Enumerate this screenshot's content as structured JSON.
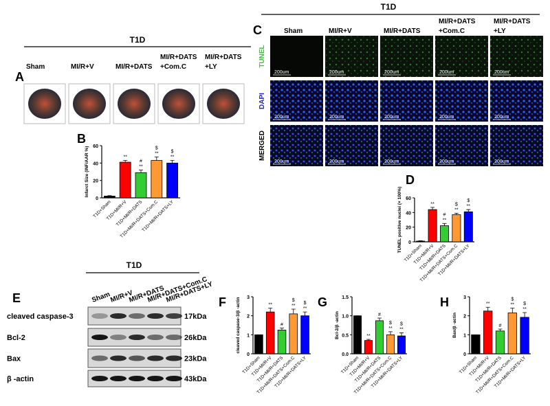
{
  "figure": {
    "panel_labels": [
      "A",
      "B",
      "C",
      "D",
      "E",
      "F",
      "G",
      "H"
    ],
    "group_a": "T1D",
    "group_c": "T1D",
    "group_e": "T1D",
    "a_labels": [
      [
        "Sham"
      ],
      [
        "MI/R+V"
      ],
      [
        "MI/R+DATS"
      ],
      [
        "MI/R+DATS",
        "+Com.C"
      ],
      [
        "MI/R+DATS",
        "+LY"
      ]
    ],
    "c_columns": [
      [
        "Sham"
      ],
      [
        "MI/R+V"
      ],
      [
        "MI/R+DATS"
      ],
      [
        "MI/R+DATS",
        "+Com.C"
      ],
      [
        "MI/R+DATS",
        "+LY"
      ]
    ],
    "c_rows": [
      "TUNEL",
      "DAPI",
      "MERGED"
    ],
    "scale_bar": "200um",
    "e_lanes": [
      "Sham",
      "MI/R+V",
      "MI/R+DATS",
      "MI/R+DATS+Com.C",
      "MI/R+DATS+LY"
    ],
    "blot_labels": [
      "cleaved caspase-3",
      "Bcl-2",
      "Bax",
      "β -actin"
    ],
    "blot_sizes": [
      "17kDa",
      "26kDa",
      "23kDa",
      "43kDa"
    ]
  },
  "chart_data": [
    {
      "type": "bar",
      "y_label": "Infarct Size (INF/AAR %)",
      "categories": [
        "T1D+Sham",
        "T1D+MI/R+V",
        "T1D+MI/R+DATS",
        "T1D+MI/R+DATS+Com.C",
        "T1D+MI/R+DATS+LY"
      ],
      "values": [
        2,
        41,
        29,
        43,
        40
      ],
      "errors": [
        0.5,
        2,
        3,
        4,
        3
      ],
      "colors": [
        "#000000",
        "#ff0000",
        "#33cc33",
        "#ff9933",
        "#0000ff"
      ],
      "annotations": [
        null,
        [
          "**"
        ],
        [
          "#",
          "**"
        ],
        [
          "$",
          "**"
        ],
        [
          "$",
          "**"
        ]
      ],
      "ylim": [
        0,
        60
      ],
      "yticks": [
        0,
        20,
        40,
        60
      ]
    },
    {
      "type": "bar",
      "y_label": "TUNEL positive nuclei (× 100%)",
      "categories": [
        "T1D+Sham",
        "T1D+MI/R+V",
        "T1D+MI/R+DATS",
        "T1D+MI/R+DATS+Com.C",
        "T1D+MI/R+DATS+LY"
      ],
      "values": [
        1,
        44,
        22,
        37,
        41
      ],
      "errors": [
        0.5,
        3,
        3,
        2,
        3
      ],
      "colors": [
        "#000000",
        "#ff0000",
        "#33cc33",
        "#ff9933",
        "#0000ff"
      ],
      "annotations": [
        null,
        [
          "**"
        ],
        [
          "#",
          "**"
        ],
        [
          "$",
          "**"
        ],
        [
          "$",
          "**"
        ]
      ],
      "ylim": [
        0,
        60
      ],
      "yticks": [
        0,
        20,
        40,
        60
      ]
    },
    {
      "type": "bar",
      "y_label": "cleaved caspase-3/β -actin",
      "categories": [
        "T1D+Sham",
        "T1D+MI/R+V",
        "T1D+MI/R+DATS",
        "T1D+MI/R+DATS+Com.C",
        "T1D+MI/R+DATS+LY"
      ],
      "values": [
        1,
        2.2,
        1.25,
        2.1,
        2.0
      ],
      "errors": [
        0,
        0.2,
        0.1,
        0.25,
        0.2
      ],
      "colors": [
        "#000000",
        "#ff0000",
        "#33cc33",
        "#ff9933",
        "#0000ff"
      ],
      "annotations": [
        null,
        [
          "**"
        ],
        [
          "#"
        ],
        [
          "$",
          "**"
        ],
        [
          "$",
          "**"
        ]
      ],
      "ylim": [
        0,
        3
      ],
      "yticks": [
        0,
        1,
        2,
        3
      ]
    },
    {
      "type": "bar",
      "y_label": "Bcl-2/β -actin",
      "categories": [
        "T1D+Sham",
        "T1D+MI/R+V",
        "T1D+MI/R+DATS",
        "T1D+MI/R+DATS+Com.C",
        "T1D+MI/R+DATS+LY"
      ],
      "values": [
        1,
        0.35,
        0.87,
        0.5,
        0.47
      ],
      "errors": [
        0,
        0.03,
        0.07,
        0.08,
        0.08
      ],
      "colors": [
        "#000000",
        "#ff0000",
        "#33cc33",
        "#ff9933",
        "#0000ff"
      ],
      "annotations": [
        null,
        [
          "**"
        ],
        [
          "#"
        ],
        [
          "$",
          "**"
        ],
        [
          "$",
          "**"
        ]
      ],
      "ylim": [
        0,
        1.5
      ],
      "yticks": [
        {
          "value": 0,
          "label": "0.0"
        },
        {
          "value": 0.5,
          "label": "0.5"
        },
        {
          "value": 1,
          "label": "1.0"
        },
        {
          "value": 1.5,
          "label": "1.5"
        }
      ]
    },
    {
      "type": "bar",
      "y_label": "Bax/β -actin",
      "categories": [
        "T1D+Sham",
        "T1D+MI/R+V",
        "T1D+MI/R+DATS",
        "T1D+MI/R+DATS+Com.C",
        "T1D+MI/R+DATS+LY"
      ],
      "values": [
        1,
        2.25,
        1.2,
        2.15,
        1.92
      ],
      "errors": [
        0,
        0.2,
        0.1,
        0.25,
        0.25
      ],
      "colors": [
        "#000000",
        "#ff0000",
        "#33cc33",
        "#ff9933",
        "#0000ff"
      ],
      "annotations": [
        null,
        [
          "**"
        ],
        [
          "#"
        ],
        [
          "$",
          "**"
        ],
        [
          "$",
          "**"
        ]
      ],
      "ylim": [
        0,
        3
      ],
      "yticks": [
        0,
        1,
        2,
        3
      ]
    }
  ]
}
